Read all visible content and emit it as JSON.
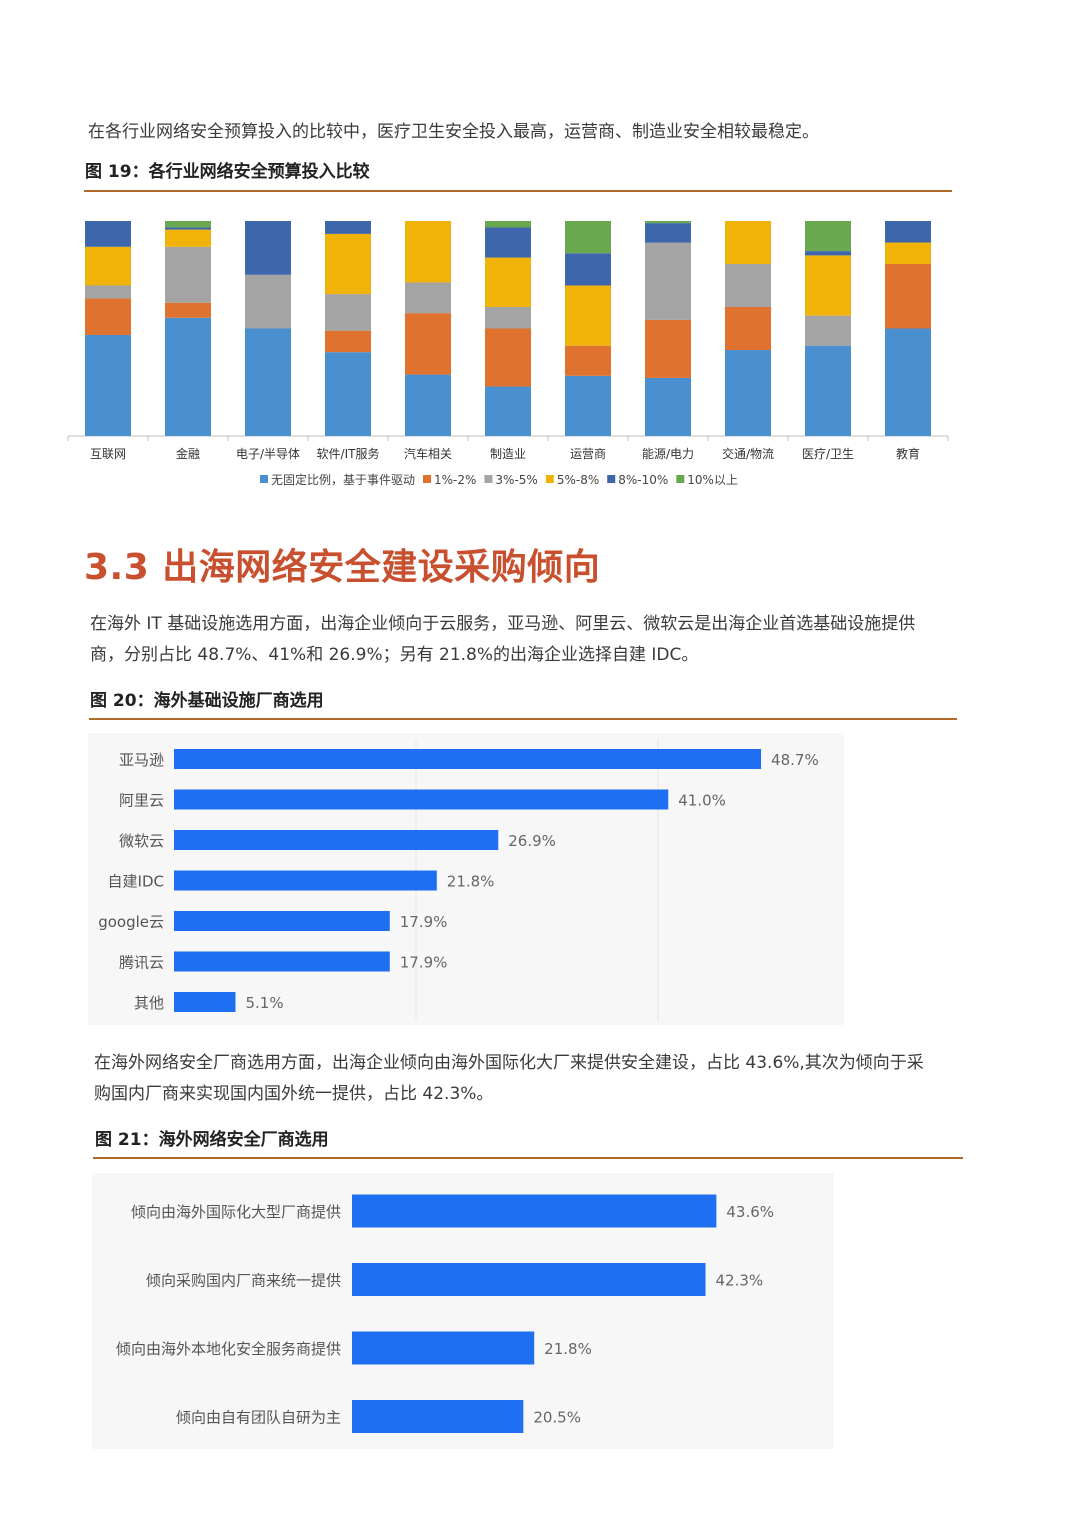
{
  "para1": "在各行业网络安全预算投入的比较中，医疗卫生安全投入最高，运营商、制造业安全相较最稳定。",
  "fig19_caption": "图 19：各行业网络安全预算投入比较",
  "section_title": "3.3 出海网络安全建设采购倾向",
  "para2_line1": "在海外 IT 基础设施选用方面，出海企业倾向于云服务，亚马逊、阿里云、微软云是出海企业首选基础设施提供",
  "para2_line2": "商，分别占比 48.7%、41%和 26.9%；另有 21.8%的出海企业选择自建 IDC。",
  "fig20_caption": "图 20：海外基础设施厂商选用",
  "para3_line1": "在海外网络安全厂商选用方面，出海企业倾向由海外国际化大厂来提供安全建设，占比 43.6%,其次为倾向于采",
  "para3_line2": "购国内厂商来实现国内国外统一提供，占比 42.3%。",
  "fig21_caption": "图 21：海外网络安全厂商选用",
  "chart_data": [
    {
      "type": "bar",
      "stacked": true,
      "percent_stacked": true,
      "categories": [
        "互联网",
        "金融",
        "电子/半导体",
        "软件/IT服务",
        "汽车相关",
        "制造业",
        "运营商",
        "能源/电力",
        "交通/物流",
        "医疗/卫生",
        "教育"
      ],
      "series": [
        {
          "name": "无固定比例，基于事件驱动",
          "color": "#4a8fd0",
          "values": [
            47,
            55,
            50,
            39,
            28,
            23,
            28,
            27,
            40,
            42,
            50
          ]
        },
        {
          "name": "1%-2%",
          "color": "#e0722f",
          "values": [
            17,
            7,
            0,
            10,
            28,
            27,
            14,
            27,
            20,
            0,
            30
          ]
        },
        {
          "name": "3%-5%",
          "color": "#a4a4a4",
          "values": [
            6,
            26,
            25,
            17,
            14,
            10,
            0,
            36,
            20,
            14,
            0
          ]
        },
        {
          "name": "5%-8%",
          "color": "#f1b30a",
          "values": [
            18,
            8,
            0,
            28,
            28,
            23,
            28,
            0,
            20,
            28,
            10
          ]
        },
        {
          "name": "8%-10%",
          "color": "#3d66ad",
          "values": [
            12,
            1,
            25,
            6,
            0,
            14,
            15,
            9,
            0,
            2,
            10
          ]
        },
        {
          "name": "10%以上",
          "color": "#6aa84f",
          "values": [
            0,
            3,
            0,
            0,
            0,
            3,
            15,
            1,
            0,
            14,
            0
          ]
        }
      ],
      "legend_position": "bottom",
      "ylim": [
        0,
        100
      ]
    },
    {
      "type": "bar",
      "orientation": "horizontal",
      "categories": [
        "亚马逊",
        "阿里云",
        "微软云",
        "自建IDC",
        "google云",
        "腾讯云",
        "其他"
      ],
      "values": [
        48.7,
        41.0,
        26.9,
        21.8,
        17.9,
        17.9,
        5.1
      ],
      "value_labels": [
        "48.7%",
        "41.0%",
        "26.9%",
        "21.8%",
        "17.9%",
        "17.9%",
        "5.1%"
      ],
      "color": "#1f6ff2",
      "xlim": [
        0,
        55
      ]
    },
    {
      "type": "bar",
      "orientation": "horizontal",
      "categories": [
        "倾向由海外国际化大型厂商提供",
        "倾向采购国内厂商来统一提供",
        "倾向由海外本地化安全服务商提供",
        "倾向由自有团队自研为主"
      ],
      "values": [
        43.6,
        42.3,
        21.8,
        20.5
      ],
      "value_labels": [
        "43.6%",
        "42.3%",
        "21.8%",
        "20.5%"
      ],
      "color": "#1f6ff2",
      "xlim": [
        0,
        56
      ]
    }
  ]
}
